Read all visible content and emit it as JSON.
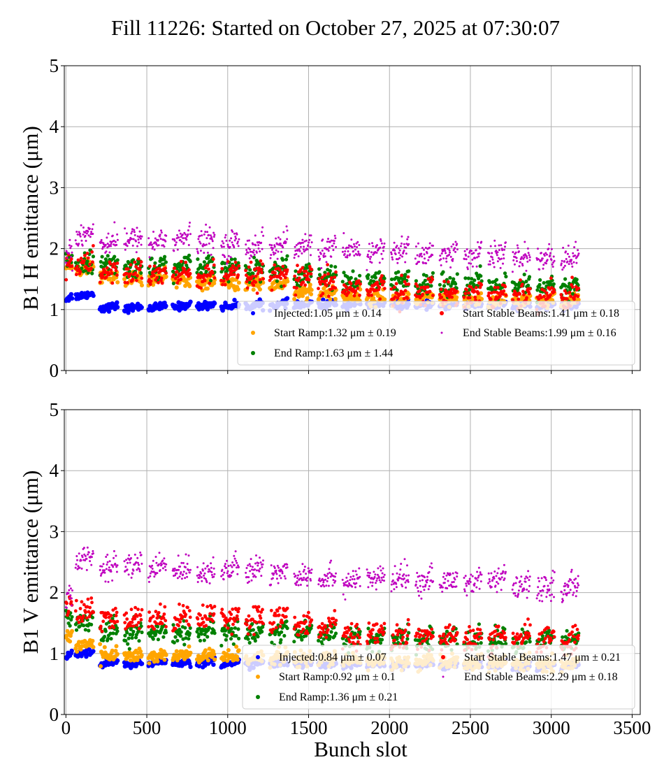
{
  "title": "Fill 11226: Started on October 27, 2025 at 07:30:07",
  "colors": {
    "injected": "#0000ff",
    "start_ramp": "#ffa500",
    "end_ramp": "#008000",
    "start_stable": "#ff0000",
    "end_stable": "#bf00bf",
    "grid": "#b0b0b0"
  },
  "chart_data": [
    {
      "type": "scatter",
      "ylabel": "B1 H emittance (μm)",
      "xlabel": "",
      "xlim": [
        -10,
        3550
      ],
      "ylim": [
        0,
        5
      ],
      "xticks": [
        0,
        500,
        1000,
        1500,
        2000,
        2500,
        3000,
        3500
      ],
      "xtick_labels_visible": false,
      "yticks": [
        0,
        1,
        2,
        3,
        4,
        5
      ],
      "grid": true,
      "legend_placement": "lower-right",
      "legend": [
        "Injected:1.05 μm ± 0.14",
        "Start Ramp:1.32 μm ± 0.19",
        "End Ramp:1.63 μm ± 1.44",
        "Start Stable Beams:1.41 μm ± 0.18",
        "End Stable Beams:1.99 μm ± 0.16"
      ],
      "train_start_slots": [
        0,
        60,
        210,
        360,
        510,
        660,
        810,
        960,
        1110,
        1260,
        1410,
        1560,
        1710,
        1860,
        2010,
        2160,
        2310,
        2460,
        2610,
        2760,
        2910,
        3060
      ],
      "train_length_slots": 110,
      "series": [
        {
          "name": "Injected",
          "mean": 1.05,
          "std": 0.14,
          "train_means": [
            1.2,
            1.24,
            1.04,
            1.03,
            1.04,
            1.06,
            1.07,
            1.06,
            1.07,
            1.08,
            1.08,
            1.09,
            1.09,
            1.08,
            1.08,
            1.07,
            1.07,
            1.07,
            1.07,
            1.07,
            1.07,
            1.07
          ]
        },
        {
          "name": "Start Ramp",
          "mean": 1.32,
          "std": 0.19,
          "train_means": [
            1.72,
            1.68,
            1.55,
            1.52,
            1.5,
            1.48,
            1.45,
            1.43,
            1.42,
            1.42,
            1.3,
            1.27,
            1.22,
            1.2,
            1.19,
            1.17,
            1.15,
            1.15,
            1.14,
            1.14,
            1.13,
            1.12
          ]
        },
        {
          "name": "End Ramp",
          "mean": 1.63,
          "std": 1.44,
          "train_means": [
            1.85,
            1.78,
            1.72,
            1.7,
            1.68,
            1.7,
            1.68,
            1.67,
            1.67,
            1.66,
            1.6,
            1.55,
            1.45,
            1.45,
            1.45,
            1.45,
            1.42,
            1.42,
            1.38,
            1.36,
            1.36,
            1.36
          ]
        },
        {
          "name": "Start Stable Beams",
          "mean": 1.41,
          "std": 0.18,
          "train_means": [
            1.78,
            1.74,
            1.62,
            1.6,
            1.58,
            1.58,
            1.56,
            1.56,
            1.55,
            1.55,
            1.5,
            1.42,
            1.35,
            1.33,
            1.3,
            1.3,
            1.28,
            1.27,
            1.25,
            1.24,
            1.24,
            1.23
          ]
        },
        {
          "name": "End Stable Beams",
          "mean": 1.99,
          "std": 0.16,
          "train_means": [
            1.92,
            2.25,
            2.12,
            2.15,
            2.12,
            2.16,
            2.13,
            2.08,
            2.05,
            2.05,
            2.02,
            2.0,
            1.95,
            1.96,
            1.96,
            1.92,
            1.91,
            1.9,
            1.9,
            1.85,
            1.84,
            1.84
          ]
        }
      ]
    },
    {
      "type": "scatter",
      "ylabel": "B1 V emittance (μm)",
      "xlabel": "Bunch slot",
      "xlim": [
        -10,
        3550
      ],
      "ylim": [
        0,
        5
      ],
      "xticks": [
        0,
        500,
        1000,
        1500,
        2000,
        2500,
        3000,
        3500
      ],
      "yticks": [
        0,
        1,
        2,
        3,
        4,
        5
      ],
      "grid": true,
      "legend_placement": "lower-right",
      "legend": [
        "Injected:0.84 μm ± 0.07",
        "Start Ramp:0.92 μm ± 0.1",
        "End Ramp:1.36 μm ± 0.21",
        "Start Stable Beams:1.47 μm ± 0.21",
        "End Stable Beams:2.29 μm ± 0.18"
      ],
      "train_start_slots": [
        0,
        60,
        210,
        360,
        510,
        660,
        810,
        960,
        1110,
        1260,
        1410,
        1560,
        1710,
        1860,
        2010,
        2160,
        2310,
        2460,
        2610,
        2760,
        2910,
        3060
      ],
      "train_length_slots": 110,
      "series": [
        {
          "name": "Injected",
          "mean": 0.84,
          "std": 0.07,
          "train_means": [
            0.98,
            1.0,
            0.85,
            0.83,
            0.85,
            0.85,
            0.86,
            0.84,
            0.84,
            0.84,
            0.83,
            0.82,
            0.82,
            0.82,
            0.82,
            0.82,
            0.81,
            0.81,
            0.81,
            0.8,
            0.8,
            0.8
          ]
        },
        {
          "name": "Start Ramp",
          "mean": 0.92,
          "std": 0.1,
          "train_means": [
            1.3,
            1.15,
            0.98,
            0.97,
            0.96,
            0.96,
            0.95,
            0.95,
            0.94,
            0.93,
            0.92,
            0.9,
            0.88,
            0.87,
            0.86,
            0.86,
            0.85,
            0.85,
            0.84,
            0.84,
            0.84,
            0.83
          ]
        },
        {
          "name": "End Ramp",
          "mean": 1.36,
          "std": 0.21,
          "train_means": [
            1.6,
            1.55,
            1.38,
            1.35,
            1.35,
            1.35,
            1.36,
            1.36,
            1.36,
            1.36,
            1.35,
            1.33,
            1.25,
            1.24,
            1.23,
            1.22,
            1.22,
            1.22,
            1.22,
            1.22,
            1.22,
            1.22
          ]
        },
        {
          "name": "Start Stable Beams",
          "mean": 1.47,
          "std": 0.21,
          "train_means": [
            1.75,
            1.7,
            1.55,
            1.55,
            1.58,
            1.6,
            1.62,
            1.6,
            1.58,
            1.55,
            1.5,
            1.45,
            1.3,
            1.3,
            1.28,
            1.27,
            1.26,
            1.25,
            1.24,
            1.24,
            1.23,
            1.22
          ]
        },
        {
          "name": "End Stable Beams",
          "mean": 2.29,
          "std": 0.18,
          "train_means": [
            2.0,
            2.55,
            2.42,
            2.45,
            2.4,
            2.38,
            2.36,
            2.38,
            2.36,
            2.34,
            2.3,
            2.25,
            2.2,
            2.22,
            2.22,
            2.2,
            2.18,
            2.18,
            2.2,
            2.1,
            2.08,
            2.08
          ]
        }
      ]
    }
  ]
}
